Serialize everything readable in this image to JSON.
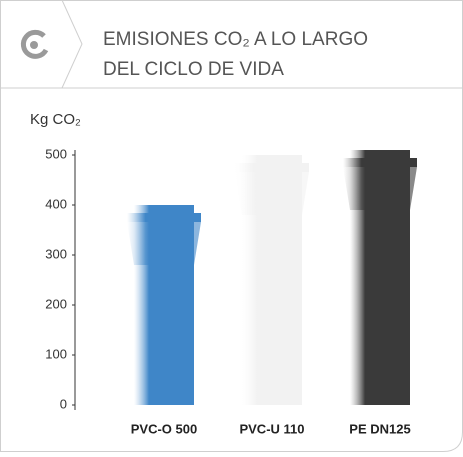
{
  "chart_data": {
    "type": "bar",
    "title": [
      "EMISIONES CO₂ A LO LARGO",
      "DEL CICLO DE VIDA"
    ],
    "y_axis_label": "Kg CO₂",
    "categories": [
      "PVC-O 500",
      "PVC-U 110",
      "PE DN125"
    ],
    "values": [
      400,
      500,
      510
    ],
    "colors": [
      "#3f86c8",
      "#f2f2f2",
      "#3a3a3a"
    ],
    "ylim": [
      0,
      510
    ],
    "yticks": [
      0,
      100,
      200,
      300,
      400,
      500
    ],
    "grid": false
  }
}
